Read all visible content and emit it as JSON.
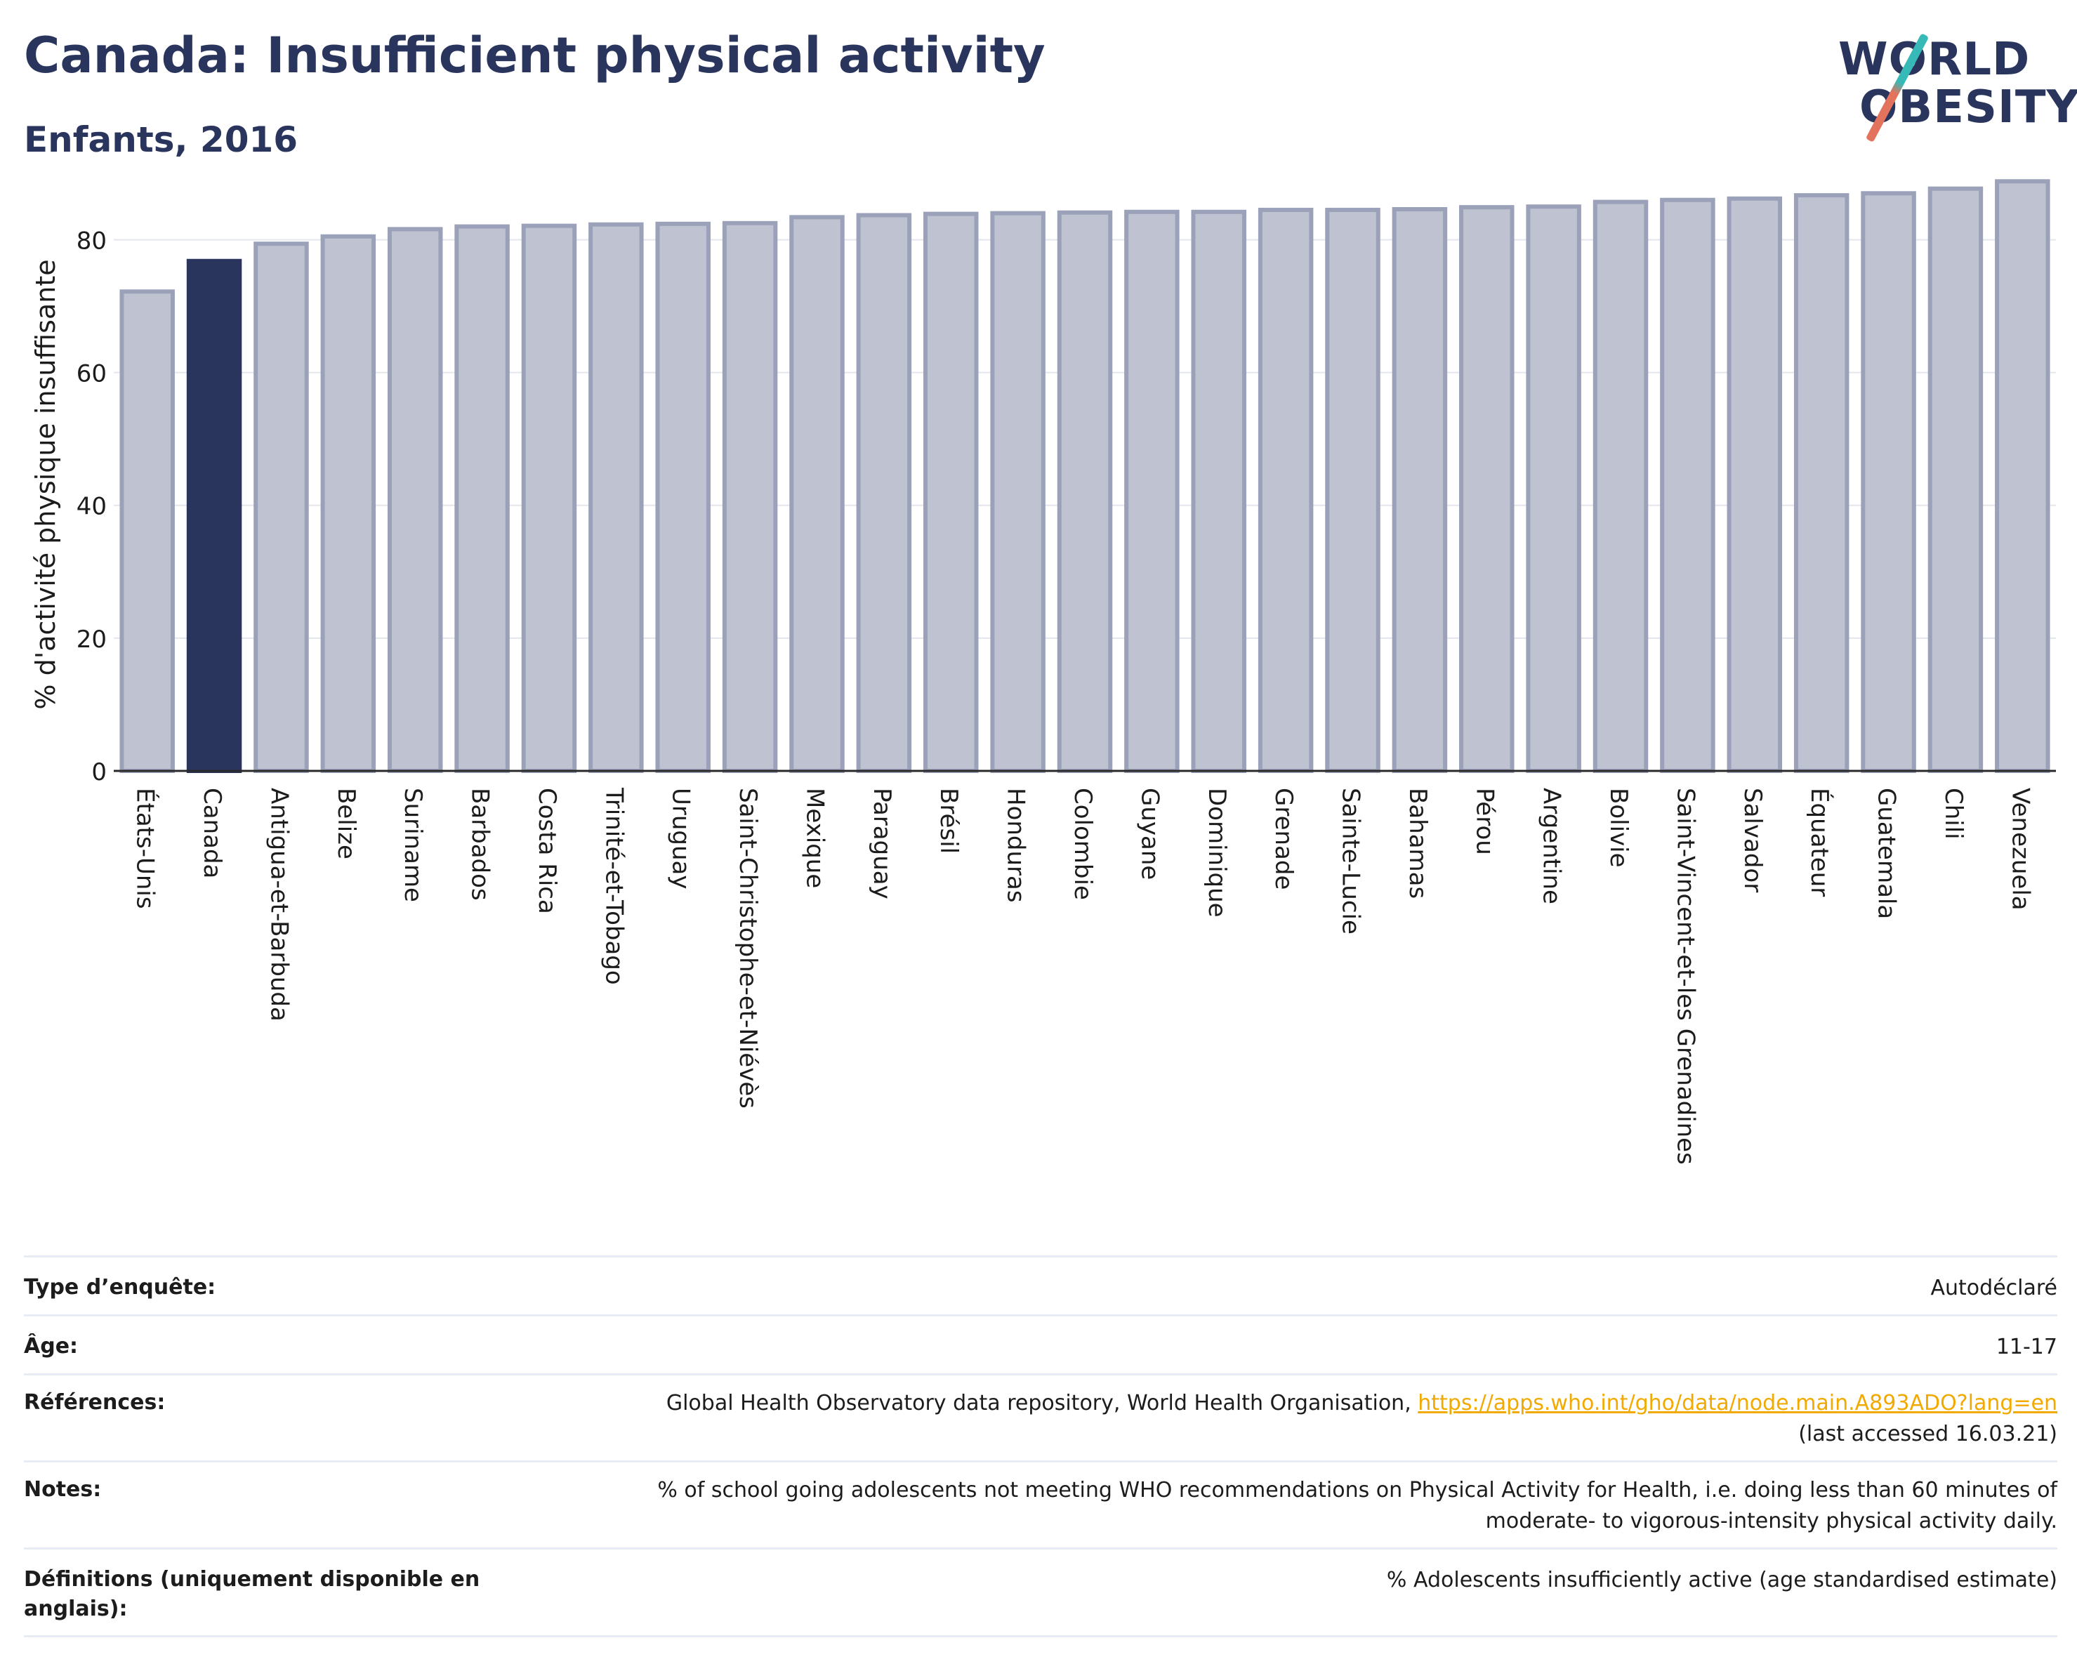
{
  "header": {
    "title": "Canada: Insufficient physical activity",
    "subtitle": "Enfants, 2016"
  },
  "logo": {
    "line1": "WORLD",
    "line2": "OBESITY",
    "colors": {
      "text": "#2a355d",
      "slash_top": "#36b9b7",
      "slash_bottom": "#e3735d"
    }
  },
  "chart_data": {
    "type": "bar",
    "ylabel": "% d'activité physique insuffisante",
    "xlabel": "",
    "ylim": [
      0,
      92
    ],
    "yticks": [
      0,
      20,
      40,
      60,
      80
    ],
    "grid": true,
    "highlight": "Canada",
    "colors": {
      "default_fill": "#bfc2d0",
      "default_stroke": "#9aa1b9",
      "highlight_fill": "#2a355d",
      "grid": "#e3e6ee",
      "axis": "#2a2a2a"
    },
    "categories": [
      "États-Unis",
      "Canada",
      "Antigua-et-Barbuda",
      "Belize",
      "Suriname",
      "Barbados",
      "Costa Rica",
      "Trinité-et-Tobago",
      "Uruguay",
      "Saint-Christophe-et-Niévès",
      "Mexique",
      "Paraguay",
      "Brésil",
      "Honduras",
      "Colombie",
      "Guyane",
      "Dominique",
      "Grenade",
      "Sainte-Lucie",
      "Bahamas",
      "Pérou",
      "Argentine",
      "Bolivie",
      "Saint-Vincent-et-les Grenadines",
      "Salvador",
      "Équateur",
      "Guatemala",
      "Chili",
      "Venezuela"
    ],
    "values": [
      72.2,
      76.8,
      79.4,
      80.5,
      81.6,
      82.0,
      82.1,
      82.3,
      82.4,
      82.5,
      83.4,
      83.7,
      83.9,
      84.0,
      84.1,
      84.2,
      84.2,
      84.5,
      84.5,
      84.6,
      84.9,
      85.0,
      85.7,
      86.0,
      86.2,
      86.7,
      87.0,
      87.7,
      88.8
    ]
  },
  "meta": {
    "survey_type": {
      "label": "Type d’enquête:",
      "value": "Autodéclaré"
    },
    "age": {
      "label": "Âge:",
      "value": "11-17"
    },
    "references": {
      "label": "Références:",
      "text": "Global Health Observatory data repository, World Health Organisation, ",
      "link": "https://apps.who.int/gho/data/node.main.A893ADO?lang=en",
      "suffix": "(last accessed 16.03.21)"
    },
    "notes": {
      "label": "Notes:",
      "line1": "% of school going adolescents not meeting WHO recommendations on Physical Activity for Health, i.e. doing less than 60 minutes of",
      "line2": "moderate- to vigorous-intensity physical activity daily."
    },
    "definitions": {
      "label": "Définitions (uniquement disponible en anglais):",
      "value": "% Adolescents insufficiently active (age standardised estimate)"
    }
  }
}
